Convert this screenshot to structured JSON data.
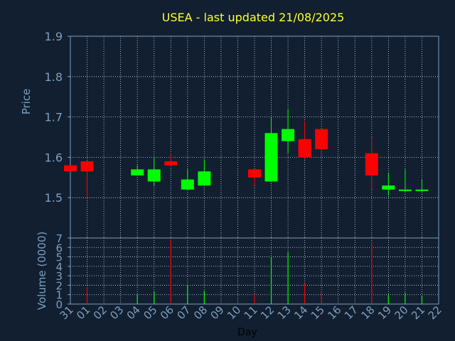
{
  "chart_data": [
    {
      "type": "candlestick",
      "title": "USEA - last updated 21/08/2025",
      "ylabel": "Price",
      "ylim": [
        1.4,
        1.9
      ],
      "yticks": [
        "1.9",
        "1.8",
        "1.7",
        "1.6",
        "1.5"
      ],
      "grid": true,
      "up_color": "#00ff00",
      "down_color": "#ff0000",
      "categories": [
        "31",
        "01",
        "02",
        "03",
        "04",
        "05",
        "06",
        "07",
        "08",
        "09",
        "10",
        "11",
        "12",
        "13",
        "14",
        "15",
        "16",
        "17",
        "18",
        "19",
        "20",
        "21",
        "22"
      ],
      "candles": [
        {
          "day": "31",
          "open": 1.58,
          "high": 1.58,
          "low": 1.565,
          "close": 1.565
        },
        {
          "day": "01",
          "open": 1.59,
          "high": 1.59,
          "low": 1.5,
          "close": 1.565
        },
        {
          "day": "04",
          "open": 1.555,
          "high": 1.58,
          "low": 1.555,
          "close": 1.57
        },
        {
          "day": "05",
          "open": 1.54,
          "high": 1.6,
          "low": 1.53,
          "close": 1.57
        },
        {
          "day": "06",
          "open": 1.59,
          "high": 1.61,
          "low": 1.575,
          "close": 1.58
        },
        {
          "day": "07",
          "open": 1.52,
          "high": 1.57,
          "low": 1.52,
          "close": 1.545
        },
        {
          "day": "08",
          "open": 1.53,
          "high": 1.595,
          "low": 1.53,
          "close": 1.565
        },
        {
          "day": "11",
          "open": 1.57,
          "high": 1.57,
          "low": 1.53,
          "close": 1.55
        },
        {
          "day": "12",
          "open": 1.54,
          "high": 1.7,
          "low": 1.54,
          "close": 1.66
        },
        {
          "day": "13",
          "open": 1.64,
          "high": 1.72,
          "low": 1.61,
          "close": 1.67
        },
        {
          "day": "14",
          "open": 1.645,
          "high": 1.69,
          "low": 1.595,
          "close": 1.6
        },
        {
          "day": "15",
          "open": 1.67,
          "high": 1.67,
          "low": 1.605,
          "close": 1.62
        },
        {
          "day": "18",
          "open": 1.61,
          "high": 1.65,
          "low": 1.52,
          "close": 1.555
        },
        {
          "day": "19",
          "open": 1.52,
          "high": 1.56,
          "low": 1.505,
          "close": 1.53
        },
        {
          "day": "20",
          "open": 1.52,
          "high": 1.57,
          "low": 1.515,
          "close": 1.52
        },
        {
          "day": "21",
          "open": 1.518,
          "high": 1.545,
          "low": 1.515,
          "close": 1.52
        }
      ]
    },
    {
      "type": "bar",
      "ylabel": "Volume (0000)",
      "xlabel": "Day",
      "ylim": [
        0,
        7
      ],
      "yticks": [
        "7",
        "6",
        "5",
        "4",
        "3",
        "2",
        "1",
        "0"
      ],
      "grid": true,
      "categories": [
        "31",
        "01",
        "02",
        "03",
        "04",
        "05",
        "06",
        "07",
        "08",
        "09",
        "10",
        "11",
        "12",
        "13",
        "14",
        "15",
        "16",
        "17",
        "18",
        "19",
        "20",
        "21",
        "22"
      ],
      "bars": [
        {
          "day": "01",
          "value": 1.8,
          "direction": "down"
        },
        {
          "day": "04",
          "value": 1.0,
          "direction": "up"
        },
        {
          "day": "05",
          "value": 1.3,
          "direction": "up"
        },
        {
          "day": "06",
          "value": 6.8,
          "direction": "down"
        },
        {
          "day": "07",
          "value": 2.0,
          "direction": "up"
        },
        {
          "day": "08",
          "value": 1.4,
          "direction": "up"
        },
        {
          "day": "11",
          "value": 1.0,
          "direction": "down"
        },
        {
          "day": "12",
          "value": 5.0,
          "direction": "up"
        },
        {
          "day": "13",
          "value": 5.5,
          "direction": "up"
        },
        {
          "day": "14",
          "value": 2.2,
          "direction": "down"
        },
        {
          "day": "15",
          "value": 1.4,
          "direction": "down"
        },
        {
          "day": "18",
          "value": 6.6,
          "direction": "down"
        },
        {
          "day": "19",
          "value": 1.0,
          "direction": "up"
        },
        {
          "day": "20",
          "value": 1.2,
          "direction": "up"
        },
        {
          "day": "21",
          "value": 0.9,
          "direction": "up"
        }
      ]
    }
  ]
}
